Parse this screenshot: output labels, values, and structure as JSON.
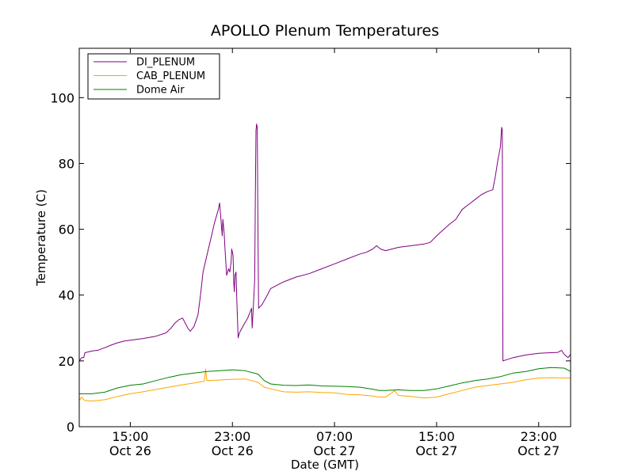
{
  "chart_data": {
    "type": "line",
    "title": "APOLLO Plenum Temperatures",
    "xlabel": "Date (GMT)",
    "ylabel": "Temperature (C)",
    "xlim_hours": [
      0,
      38.5
    ],
    "ylim": [
      0,
      115
    ],
    "yticks": [
      0,
      20,
      40,
      60,
      80,
      100
    ],
    "xticks": [
      {
        "hour": 4,
        "line1": "15:00",
        "line2": "Oct 26"
      },
      {
        "hour": 12,
        "line1": "23:00",
        "line2": "Oct 26"
      },
      {
        "hour": 20,
        "line1": "07:00",
        "line2": "Oct 27"
      },
      {
        "hour": 28,
        "line1": "15:00",
        "line2": "Oct 27"
      },
      {
        "hour": 36,
        "line1": "23:00",
        "line2": "Oct 27"
      }
    ],
    "legend_position": "top-left",
    "series": [
      {
        "name": "DI_PLENUM",
        "color": "#800080",
        "points": [
          [
            0,
            20
          ],
          [
            0.2,
            21
          ],
          [
            0.35,
            21
          ],
          [
            0.45,
            22.5
          ],
          [
            1,
            23
          ],
          [
            1.5,
            23.3
          ],
          [
            2,
            24
          ],
          [
            2.5,
            24.8
          ],
          [
            3,
            25.5
          ],
          [
            3.5,
            26
          ],
          [
            4,
            26.3
          ],
          [
            5,
            26.8
          ],
          [
            6,
            27.5
          ],
          [
            6.8,
            28.5
          ],
          [
            7.2,
            30
          ],
          [
            7.5,
            31.5
          ],
          [
            7.8,
            32.5
          ],
          [
            8.1,
            33
          ],
          [
            8.3,
            31.5
          ],
          [
            8.5,
            30
          ],
          [
            8.7,
            29
          ],
          [
            9,
            30.5
          ],
          [
            9.3,
            34
          ],
          [
            9.5,
            40
          ],
          [
            9.7,
            47
          ],
          [
            10,
            52
          ],
          [
            10.3,
            57
          ],
          [
            10.6,
            62
          ],
          [
            10.9,
            66
          ],
          [
            11.0,
            68
          ],
          [
            11.1,
            63
          ],
          [
            11.2,
            58
          ],
          [
            11.25,
            63
          ],
          [
            11.35,
            59
          ],
          [
            11.45,
            52
          ],
          [
            11.55,
            46
          ],
          [
            11.7,
            48
          ],
          [
            11.8,
            47
          ],
          [
            11.9,
            50
          ],
          [
            11.95,
            54
          ],
          [
            12.05,
            52
          ],
          [
            12.1,
            44
          ],
          [
            12.15,
            41
          ],
          [
            12.2,
            46
          ],
          [
            12.28,
            47
          ],
          [
            12.35,
            38
          ],
          [
            12.45,
            27
          ],
          [
            12.55,
            28.5
          ],
          [
            12.9,
            31
          ],
          [
            13.2,
            33
          ],
          [
            13.5,
            36
          ],
          [
            13.55,
            30
          ],
          [
            13.65,
            37
          ],
          [
            13.75,
            45
          ],
          [
            13.8,
            70
          ],
          [
            13.85,
            90
          ],
          [
            13.9,
            92
          ],
          [
            13.95,
            91
          ],
          [
            14.0,
            60
          ],
          [
            14.05,
            36
          ],
          [
            14.3,
            37
          ],
          [
            14.6,
            39
          ],
          [
            15,
            42
          ],
          [
            15.5,
            43
          ],
          [
            16,
            44
          ],
          [
            17,
            45.5
          ],
          [
            18,
            46.5
          ],
          [
            19,
            48
          ],
          [
            20,
            49.5
          ],
          [
            21,
            51
          ],
          [
            22,
            52.5
          ],
          [
            22.5,
            53
          ],
          [
            23,
            54
          ],
          [
            23.3,
            55
          ],
          [
            23.6,
            54
          ],
          [
            24,
            53.5
          ],
          [
            25,
            54.5
          ],
          [
            26,
            55
          ],
          [
            27,
            55.5
          ],
          [
            27.5,
            56
          ],
          [
            28,
            58
          ],
          [
            29,
            61.5
          ],
          [
            29.5,
            63
          ],
          [
            30,
            66
          ],
          [
            30.5,
            67.5
          ],
          [
            31,
            69
          ],
          [
            31.5,
            70.5
          ],
          [
            32,
            71.5
          ],
          [
            32.4,
            72
          ],
          [
            32.6,
            76
          ],
          [
            32.8,
            81
          ],
          [
            33.0,
            85
          ],
          [
            33.1,
            91
          ],
          [
            33.15,
            90
          ],
          [
            33.2,
            20
          ],
          [
            34,
            21
          ],
          [
            35,
            21.8
          ],
          [
            36,
            22.3
          ],
          [
            37,
            22.5
          ],
          [
            37.5,
            22.6
          ],
          [
            37.8,
            23.2
          ],
          [
            38,
            22
          ],
          [
            38.3,
            21
          ],
          [
            38.5,
            22
          ]
        ]
      },
      {
        "name": "CAB_PLENUM",
        "color": "#FFA500",
        "points": [
          [
            0,
            8
          ],
          [
            0.2,
            9
          ],
          [
            0.4,
            8
          ],
          [
            1,
            7.8
          ],
          [
            2,
            8.2
          ],
          [
            3,
            9.2
          ],
          [
            4,
            10
          ],
          [
            5,
            10.6
          ],
          [
            6,
            11.3
          ],
          [
            7,
            12
          ],
          [
            8,
            12.7
          ],
          [
            9,
            13.3
          ],
          [
            9.8,
            13.8
          ],
          [
            9.9,
            17.5
          ],
          [
            10,
            14
          ],
          [
            11,
            14.2
          ],
          [
            12,
            14.4
          ],
          [
            13,
            14.5
          ],
          [
            13.5,
            14
          ],
          [
            14,
            13.5
          ],
          [
            14.5,
            12
          ],
          [
            15,
            11.5
          ],
          [
            16,
            10.6
          ],
          [
            17,
            10.5
          ],
          [
            18,
            10.6
          ],
          [
            19,
            10.4
          ],
          [
            20,
            10.3
          ],
          [
            21,
            9.8
          ],
          [
            22,
            9.7
          ],
          [
            23,
            9.3
          ],
          [
            23.5,
            9
          ],
          [
            24,
            9
          ],
          [
            24.5,
            10.3
          ],
          [
            24.7,
            11
          ],
          [
            25,
            9.5
          ],
          [
            26,
            9.2
          ],
          [
            27,
            8.7
          ],
          [
            28,
            9
          ],
          [
            29,
            10
          ],
          [
            30,
            11
          ],
          [
            31,
            12
          ],
          [
            32,
            12.5
          ],
          [
            33,
            13
          ],
          [
            34,
            13.5
          ],
          [
            35,
            14.3
          ],
          [
            36,
            14.8
          ],
          [
            37,
            14.9
          ],
          [
            38,
            14.8
          ],
          [
            38.5,
            14.8
          ]
        ]
      },
      {
        "name": "Dome Air",
        "color": "#008000",
        "points": [
          [
            0,
            10
          ],
          [
            1,
            10
          ],
          [
            2,
            10.5
          ],
          [
            3,
            11.8
          ],
          [
            4,
            12.6
          ],
          [
            5,
            13
          ],
          [
            6,
            14
          ],
          [
            7,
            15
          ],
          [
            8,
            15.8
          ],
          [
            9,
            16.3
          ],
          [
            10,
            16.8
          ],
          [
            11,
            17
          ],
          [
            12,
            17.3
          ],
          [
            13,
            17
          ],
          [
            14,
            16
          ],
          [
            14.5,
            14
          ],
          [
            15,
            13
          ],
          [
            16,
            12.6
          ],
          [
            17,
            12.5
          ],
          [
            18,
            12.7
          ],
          [
            19,
            12.4
          ],
          [
            20,
            12.3
          ],
          [
            21,
            12.2
          ],
          [
            22,
            12
          ],
          [
            23,
            11.4
          ],
          [
            23.5,
            11
          ],
          [
            24,
            11
          ],
          [
            25,
            11.2
          ],
          [
            26,
            11
          ],
          [
            27,
            11
          ],
          [
            28,
            11.5
          ],
          [
            29,
            12.4
          ],
          [
            30,
            13.3
          ],
          [
            31,
            14
          ],
          [
            32,
            14.5
          ],
          [
            33,
            15.2
          ],
          [
            34,
            16.3
          ],
          [
            35,
            16.8
          ],
          [
            36,
            17.6
          ],
          [
            37,
            18
          ],
          [
            38,
            17.8
          ],
          [
            38.5,
            16.8
          ]
        ]
      }
    ]
  }
}
